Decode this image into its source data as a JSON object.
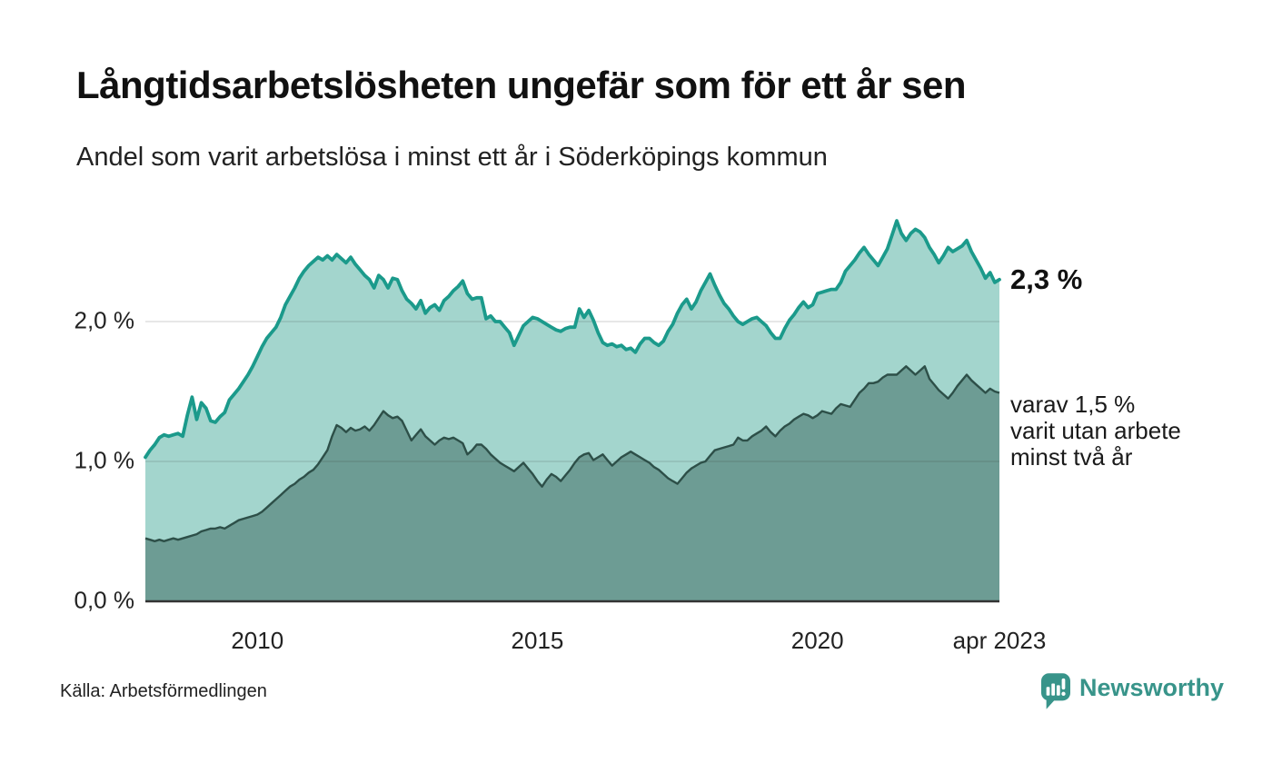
{
  "chart_data": {
    "type": "area",
    "title": "Långtidsarbetslösheten ungefär som för ett år sen",
    "subtitle": "Andel som varit arbetslösa i minst ett år i Söderköpings kommun",
    "unit": "%",
    "frequency": "monthly",
    "x_start": "2008-01",
    "x_end": "2023-04",
    "xlabel": "",
    "ylabel": "",
    "ylim": [
      0,
      2.9
    ],
    "grid": "horizontal",
    "grid_values": [
      1,
      2
    ],
    "y_ticks": [
      {
        "label": "0,0 %",
        "value": 0
      },
      {
        "label": "1,0 %",
        "value": 1
      },
      {
        "label": "2,0 %",
        "value": 2
      }
    ],
    "x_ticks": [
      {
        "label": "2010",
        "index": 24
      },
      {
        "label": "2015",
        "index": 84
      },
      {
        "label": "2020",
        "index": 144
      },
      {
        "label": "apr 2023",
        "index": 183
      }
    ],
    "series": [
      {
        "name": "Andel som varit arbetslösa i minst ett år",
        "line_color": "#1b9a8b",
        "fill_color": "#a3d5cd",
        "end_value": 2.3,
        "end_label": "2,3 %",
        "values": [
          1.03,
          1.08,
          1.12,
          1.17,
          1.19,
          1.18,
          1.19,
          1.2,
          1.18,
          1.33,
          1.46,
          1.3,
          1.42,
          1.38,
          1.29,
          1.28,
          1.32,
          1.35,
          1.44,
          1.48,
          1.52,
          1.57,
          1.62,
          1.68,
          1.75,
          1.82,
          1.88,
          1.92,
          1.96,
          2.03,
          2.12,
          2.18,
          2.24,
          2.31,
          2.36,
          2.4,
          2.43,
          2.46,
          2.44,
          2.47,
          2.44,
          2.48,
          2.45,
          2.42,
          2.46,
          2.41,
          2.37,
          2.33,
          2.3,
          2.24,
          2.33,
          2.3,
          2.24,
          2.31,
          2.3,
          2.22,
          2.16,
          2.13,
          2.09,
          2.15,
          2.06,
          2.1,
          2.12,
          2.08,
          2.15,
          2.18,
          2.22,
          2.25,
          2.29,
          2.2,
          2.16,
          2.17,
          2.17,
          2.02,
          2.04,
          2.0,
          2.0,
          1.96,
          1.92,
          1.83,
          1.9,
          1.97,
          2.0,
          2.03,
          2.02,
          2.0,
          1.98,
          1.96,
          1.94,
          1.93,
          1.95,
          1.96,
          1.96,
          2.09,
          2.03,
          2.08,
          2.01,
          1.92,
          1.85,
          1.83,
          1.84,
          1.82,
          1.83,
          1.8,
          1.81,
          1.78,
          1.84,
          1.88,
          1.88,
          1.85,
          1.83,
          1.86,
          1.93,
          1.98,
          2.06,
          2.12,
          2.16,
          2.09,
          2.14,
          2.22,
          2.28,
          2.34,
          2.26,
          2.19,
          2.13,
          2.09,
          2.04,
          2.0,
          1.98,
          2.0,
          2.02,
          2.03,
          2.0,
          1.97,
          1.92,
          1.88,
          1.88,
          1.95,
          2.01,
          2.05,
          2.1,
          2.14,
          2.1,
          2.12,
          2.2,
          2.21,
          2.22,
          2.23,
          2.23,
          2.28,
          2.36,
          2.4,
          2.44,
          2.49,
          2.53,
          2.48,
          2.44,
          2.4,
          2.46,
          2.52,
          2.62,
          2.72,
          2.63,
          2.58,
          2.63,
          2.66,
          2.64,
          2.6,
          2.53,
          2.48,
          2.42,
          2.47,
          2.53,
          2.5,
          2.52,
          2.54,
          2.58,
          2.5,
          2.44,
          2.38,
          2.31,
          2.35,
          2.28,
          2.3
        ]
      },
      {
        "name": "varav utan arbete minst två år",
        "line_color": "#2d4f48",
        "fill_color": "#6d9c94",
        "end_value": 1.5,
        "end_label_lines": [
          "varav 1,5 %",
          "varit utan arbete",
          "minst två år"
        ],
        "values": [
          0.45,
          0.44,
          0.43,
          0.44,
          0.43,
          0.44,
          0.45,
          0.44,
          0.45,
          0.46,
          0.47,
          0.48,
          0.5,
          0.51,
          0.52,
          0.52,
          0.53,
          0.52,
          0.54,
          0.56,
          0.58,
          0.59,
          0.6,
          0.61,
          0.62,
          0.64,
          0.67,
          0.7,
          0.73,
          0.76,
          0.79,
          0.82,
          0.84,
          0.87,
          0.89,
          0.92,
          0.94,
          0.98,
          1.03,
          1.08,
          1.18,
          1.26,
          1.24,
          1.21,
          1.24,
          1.22,
          1.23,
          1.25,
          1.22,
          1.26,
          1.31,
          1.36,
          1.33,
          1.31,
          1.32,
          1.29,
          1.22,
          1.15,
          1.19,
          1.23,
          1.18,
          1.15,
          1.12,
          1.15,
          1.17,
          1.16,
          1.17,
          1.15,
          1.13,
          1.05,
          1.08,
          1.12,
          1.12,
          1.09,
          1.05,
          1.02,
          0.99,
          0.97,
          0.95,
          0.93,
          0.96,
          0.99,
          0.95,
          0.91,
          0.86,
          0.82,
          0.87,
          0.91,
          0.89,
          0.86,
          0.9,
          0.94,
          0.99,
          1.03,
          1.05,
          1.06,
          1.01,
          1.03,
          1.05,
          1.01,
          0.97,
          1.0,
          1.03,
          1.05,
          1.07,
          1.05,
          1.03,
          1.01,
          0.99,
          0.96,
          0.94,
          0.91,
          0.88,
          0.86,
          0.84,
          0.88,
          0.92,
          0.95,
          0.97,
          0.99,
          1.0,
          1.04,
          1.08,
          1.09,
          1.1,
          1.11,
          1.12,
          1.17,
          1.15,
          1.15,
          1.18,
          1.2,
          1.22,
          1.25,
          1.21,
          1.18,
          1.22,
          1.25,
          1.27,
          1.3,
          1.32,
          1.34,
          1.33,
          1.31,
          1.33,
          1.36,
          1.35,
          1.34,
          1.38,
          1.41,
          1.4,
          1.39,
          1.44,
          1.49,
          1.52,
          1.56,
          1.56,
          1.57,
          1.6,
          1.62,
          1.62,
          1.62,
          1.65,
          1.68,
          1.65,
          1.62,
          1.65,
          1.68,
          1.59,
          1.55,
          1.51,
          1.48,
          1.45,
          1.49,
          1.54,
          1.58,
          1.62,
          1.58,
          1.55,
          1.52,
          1.49,
          1.52,
          1.5,
          1.49
        ]
      }
    ]
  },
  "footer": {
    "source": "Källa: Arbetsförmedlingen",
    "brand": "Newsworthy"
  },
  "colors": {
    "accent": "#1b9a8b",
    "fill_light": "#a3d5cd",
    "fill_dark": "#6d9c94",
    "line_dark": "#2d4f48",
    "grid": "#3c3c3c",
    "axis": "#333333",
    "brand": "#38948a",
    "text": "#1a1a1a"
  }
}
